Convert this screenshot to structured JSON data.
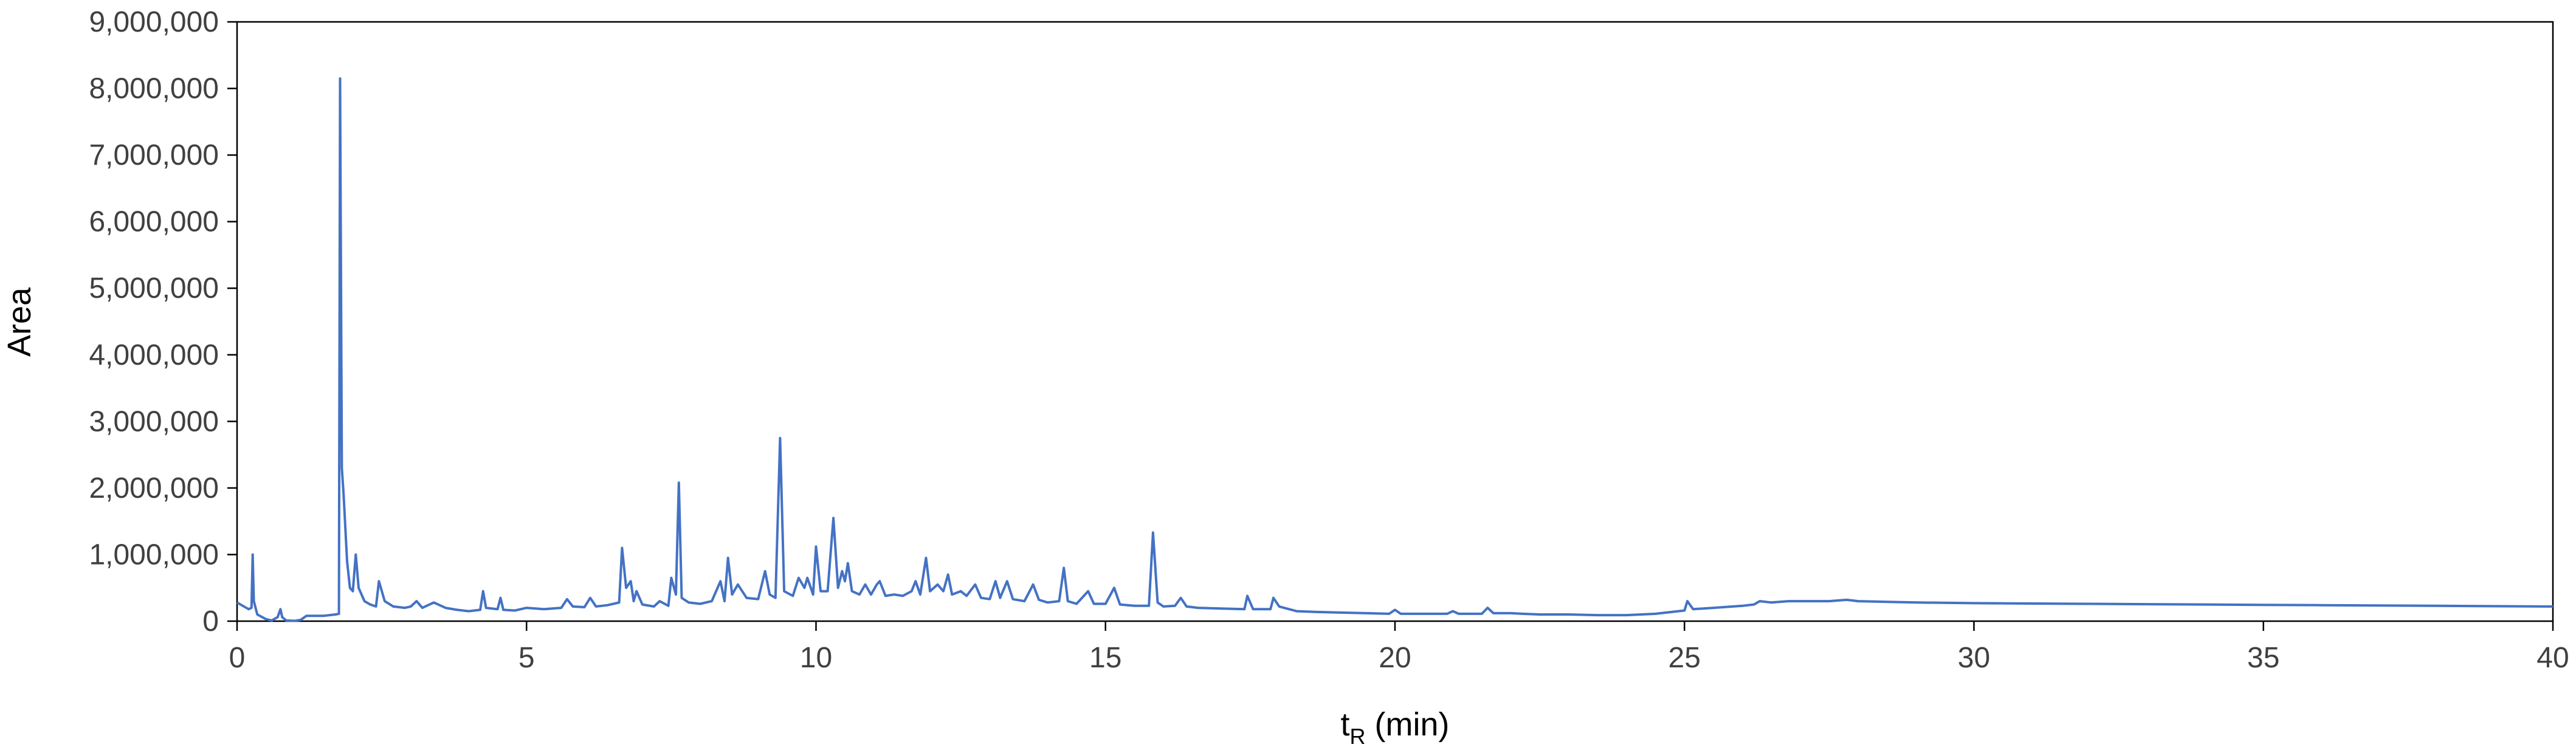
{
  "chart_data": {
    "type": "line",
    "title": "",
    "xlabel": "t",
    "xlabel_sub": "R",
    "xlabel_suffix": " (min)",
    "ylabel": "Area",
    "xlim": [
      0,
      40
    ],
    "ylim": [
      0,
      9000000
    ],
    "x_ticks": [
      0,
      5,
      10,
      15,
      20,
      25,
      30,
      35,
      40
    ],
    "x_tick_labels": [
      "0",
      "5",
      "10",
      "15",
      "20",
      "25",
      "30",
      "35",
      "40"
    ],
    "y_ticks": [
      0,
      1000000,
      2000000,
      3000000,
      4000000,
      5000000,
      6000000,
      7000000,
      8000000,
      9000000
    ],
    "y_tick_labels": [
      "0",
      "1,000,000",
      "2,000,000",
      "3,000,000",
      "4,000,000",
      "5,000,000",
      "6,000,000",
      "7,000,000",
      "8,000,000",
      "9,000,000"
    ],
    "grid": false,
    "legend": "none",
    "series": [
      {
        "color": "#4472C4",
        "points": [
          [
            0,
            280000
          ],
          [
            0.1,
            230000
          ],
          [
            0.2,
            180000
          ],
          [
            0.25,
            200000
          ],
          [
            0.27,
            1000000
          ],
          [
            0.29,
            300000
          ],
          [
            0.35,
            100000
          ],
          [
            0.5,
            30000
          ],
          [
            0.6,
            10000
          ],
          [
            0.7,
            60000
          ],
          [
            0.75,
            180000
          ],
          [
            0.78,
            60000
          ],
          [
            0.85,
            10000
          ],
          [
            1.0,
            5000
          ],
          [
            1.1,
            20000
          ],
          [
            1.2,
            80000
          ],
          [
            1.5,
            80000
          ],
          [
            1.7,
            100000
          ],
          [
            1.76,
            110000
          ],
          [
            1.78,
            8150000
          ],
          [
            1.81,
            2300000
          ],
          [
            1.84,
            1900000
          ],
          [
            1.9,
            900000
          ],
          [
            1.95,
            500000
          ],
          [
            2.0,
            450000
          ],
          [
            2.05,
            1000000
          ],
          [
            2.1,
            500000
          ],
          [
            2.2,
            300000
          ],
          [
            2.3,
            250000
          ],
          [
            2.4,
            220000
          ],
          [
            2.45,
            600000
          ],
          [
            2.55,
            300000
          ],
          [
            2.7,
            220000
          ],
          [
            2.9,
            200000
          ],
          [
            3.0,
            220000
          ],
          [
            3.1,
            300000
          ],
          [
            3.2,
            200000
          ],
          [
            3.4,
            280000
          ],
          [
            3.6,
            200000
          ],
          [
            3.8,
            170000
          ],
          [
            4.0,
            150000
          ],
          [
            4.2,
            170000
          ],
          [
            4.25,
            450000
          ],
          [
            4.3,
            200000
          ],
          [
            4.5,
            180000
          ],
          [
            4.55,
            350000
          ],
          [
            4.6,
            170000
          ],
          [
            4.8,
            160000
          ],
          [
            5.0,
            200000
          ],
          [
            5.3,
            180000
          ],
          [
            5.6,
            200000
          ],
          [
            5.7,
            330000
          ],
          [
            5.8,
            220000
          ],
          [
            6.0,
            210000
          ],
          [
            6.1,
            350000
          ],
          [
            6.2,
            220000
          ],
          [
            6.4,
            240000
          ],
          [
            6.6,
            280000
          ],
          [
            6.65,
            1100000
          ],
          [
            6.72,
            500000
          ],
          [
            6.8,
            600000
          ],
          [
            6.85,
            300000
          ],
          [
            6.9,
            450000
          ],
          [
            7.0,
            250000
          ],
          [
            7.2,
            220000
          ],
          [
            7.3,
            300000
          ],
          [
            7.45,
            230000
          ],
          [
            7.5,
            650000
          ],
          [
            7.58,
            400000
          ],
          [
            7.63,
            2080000
          ],
          [
            7.68,
            350000
          ],
          [
            7.8,
            280000
          ],
          [
            8.0,
            260000
          ],
          [
            8.2,
            300000
          ],
          [
            8.35,
            600000
          ],
          [
            8.42,
            300000
          ],
          [
            8.48,
            950000
          ],
          [
            8.55,
            400000
          ],
          [
            8.65,
            550000
          ],
          [
            8.8,
            350000
          ],
          [
            9.0,
            330000
          ],
          [
            9.12,
            750000
          ],
          [
            9.2,
            400000
          ],
          [
            9.3,
            350000
          ],
          [
            9.38,
            2750000
          ],
          [
            9.45,
            450000
          ],
          [
            9.6,
            380000
          ],
          [
            9.7,
            650000
          ],
          [
            9.8,
            500000
          ],
          [
            9.85,
            650000
          ],
          [
            9.95,
            400000
          ],
          [
            10.0,
            1120000
          ],
          [
            10.08,
            450000
          ],
          [
            10.2,
            450000
          ],
          [
            10.3,
            1550000
          ],
          [
            10.38,
            500000
          ],
          [
            10.45,
            750000
          ],
          [
            10.5,
            600000
          ],
          [
            10.55,
            870000
          ],
          [
            10.62,
            450000
          ],
          [
            10.75,
            400000
          ],
          [
            10.85,
            550000
          ],
          [
            10.95,
            400000
          ],
          [
            11.05,
            550000
          ],
          [
            11.1,
            600000
          ],
          [
            11.2,
            380000
          ],
          [
            11.35,
            400000
          ],
          [
            11.5,
            380000
          ],
          [
            11.65,
            450000
          ],
          [
            11.72,
            600000
          ],
          [
            11.8,
            400000
          ],
          [
            11.9,
            950000
          ],
          [
            11.97,
            450000
          ],
          [
            12.1,
            550000
          ],
          [
            12.2,
            450000
          ],
          [
            12.28,
            700000
          ],
          [
            12.35,
            400000
          ],
          [
            12.5,
            450000
          ],
          [
            12.6,
            380000
          ],
          [
            12.75,
            550000
          ],
          [
            12.85,
            350000
          ],
          [
            13.0,
            330000
          ],
          [
            13.1,
            600000
          ],
          [
            13.18,
            350000
          ],
          [
            13.3,
            600000
          ],
          [
            13.4,
            330000
          ],
          [
            13.6,
            300000
          ],
          [
            13.75,
            550000
          ],
          [
            13.85,
            320000
          ],
          [
            14.0,
            280000
          ],
          [
            14.2,
            300000
          ],
          [
            14.28,
            800000
          ],
          [
            14.35,
            300000
          ],
          [
            14.5,
            260000
          ],
          [
            14.7,
            450000
          ],
          [
            14.8,
            260000
          ],
          [
            15.0,
            260000
          ],
          [
            15.15,
            500000
          ],
          [
            15.25,
            250000
          ],
          [
            15.5,
            230000
          ],
          [
            15.75,
            230000
          ],
          [
            15.82,
            1330000
          ],
          [
            15.9,
            280000
          ],
          [
            16.0,
            220000
          ],
          [
            16.2,
            230000
          ],
          [
            16.3,
            350000
          ],
          [
            16.4,
            220000
          ],
          [
            16.6,
            200000
          ],
          [
            17.0,
            190000
          ],
          [
            17.4,
            180000
          ],
          [
            17.45,
            380000
          ],
          [
            17.55,
            180000
          ],
          [
            17.85,
            180000
          ],
          [
            17.9,
            350000
          ],
          [
            18.0,
            220000
          ],
          [
            18.3,
            150000
          ],
          [
            18.6,
            140000
          ],
          [
            19.0,
            130000
          ],
          [
            19.5,
            120000
          ],
          [
            19.9,
            110000
          ],
          [
            20.0,
            170000
          ],
          [
            20.1,
            110000
          ],
          [
            20.5,
            110000
          ],
          [
            20.9,
            110000
          ],
          [
            21.0,
            150000
          ],
          [
            21.1,
            110000
          ],
          [
            21.5,
            110000
          ],
          [
            21.6,
            200000
          ],
          [
            21.7,
            120000
          ],
          [
            22.0,
            120000
          ],
          [
            22.2,
            110000
          ],
          [
            22.5,
            100000
          ],
          [
            23.0,
            100000
          ],
          [
            23.5,
            90000
          ],
          [
            24.0,
            90000
          ],
          [
            24.5,
            110000
          ],
          [
            25.0,
            160000
          ],
          [
            25.05,
            300000
          ],
          [
            25.15,
            180000
          ],
          [
            25.5,
            200000
          ],
          [
            26.0,
            230000
          ],
          [
            26.2,
            250000
          ],
          [
            26.3,
            300000
          ],
          [
            26.5,
            280000
          ],
          [
            26.8,
            300000
          ],
          [
            27.5,
            300000
          ],
          [
            27.8,
            320000
          ],
          [
            28.0,
            300000
          ],
          [
            28.5,
            290000
          ],
          [
            29.0,
            280000
          ],
          [
            30.0,
            270000
          ],
          [
            31.0,
            265000
          ],
          [
            32.0,
            260000
          ],
          [
            33.0,
            255000
          ],
          [
            34.0,
            250000
          ],
          [
            35.0,
            245000
          ],
          [
            36.0,
            240000
          ],
          [
            37.0,
            235000
          ],
          [
            38.0,
            230000
          ],
          [
            39.0,
            225000
          ],
          [
            40.0,
            220000
          ]
        ]
      }
    ]
  }
}
